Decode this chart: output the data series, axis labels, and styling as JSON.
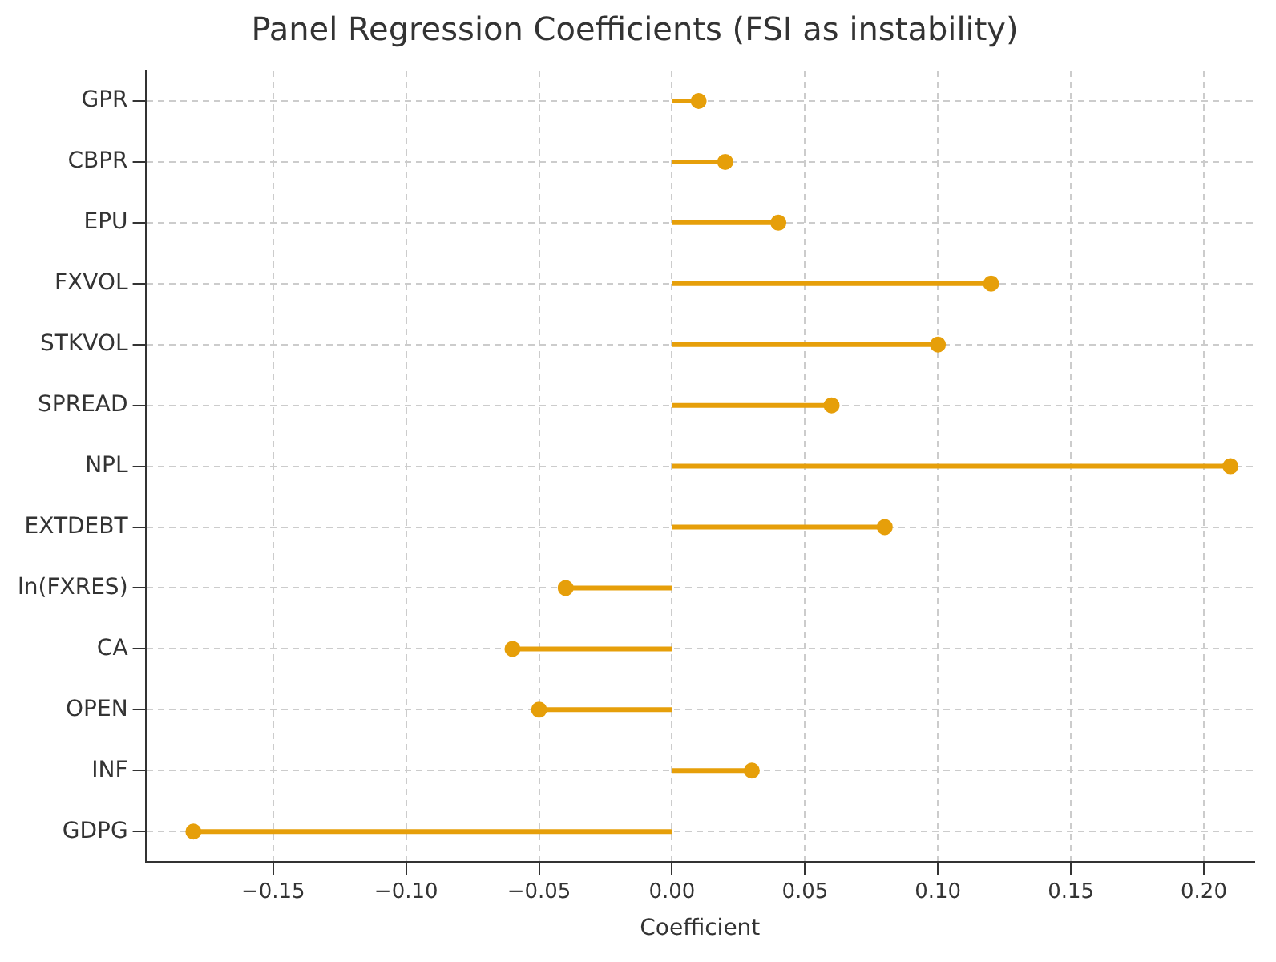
{
  "chart_data": {
    "type": "lollipop",
    "orientation": "horizontal",
    "title": "Panel Regression Coefficients (FSI as instability)",
    "xlabel": "Coefficient",
    "categories": [
      "GPR",
      "CBPR",
      "EPU",
      "FXVOL",
      "STKVOL",
      "SPREAD",
      "NPL",
      "EXTDEBT",
      "ln(FXRES)",
      "CA",
      "OPEN",
      "INF",
      "GDPG"
    ],
    "values": [
      0.01,
      0.02,
      0.04,
      0.12,
      0.1,
      0.06,
      0.21,
      0.08,
      -0.04,
      -0.06,
      -0.05,
      0.03,
      -0.18
    ],
    "color": "#e69f0a",
    "marker": "circle",
    "grid": true,
    "legend": false,
    "xlim": [
      -0.198,
      0.219
    ],
    "xticks": [
      {
        "value": -0.15,
        "label": "−0.15"
      },
      {
        "value": -0.1,
        "label": "−0.10"
      },
      {
        "value": -0.05,
        "label": "−0.05"
      },
      {
        "value": 0,
        "label": "0.00"
      },
      {
        "value": 0.05,
        "label": "0.05"
      },
      {
        "value": 0.1,
        "label": "0.10"
      },
      {
        "value": 0.15,
        "label": "0.15"
      },
      {
        "value": 0.2,
        "label": "0.20"
      }
    ]
  }
}
